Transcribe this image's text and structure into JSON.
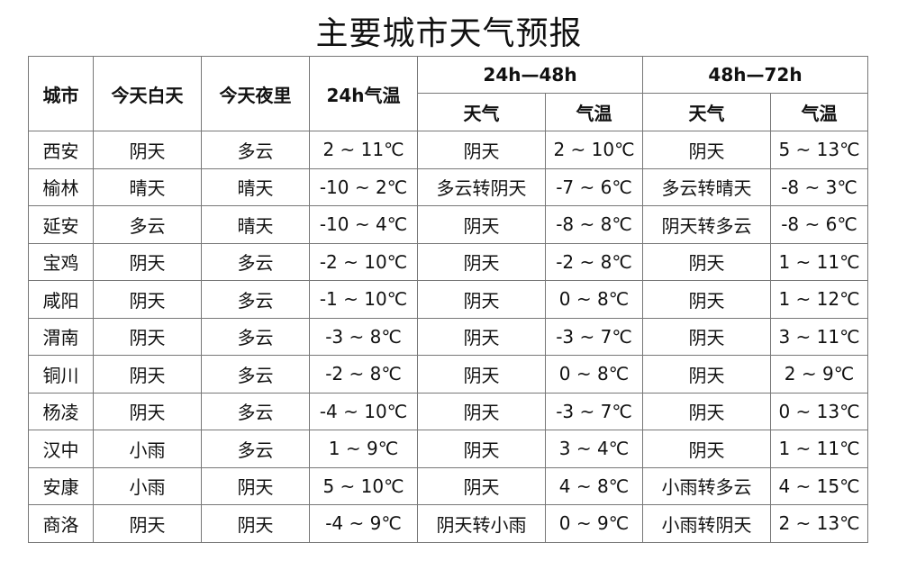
{
  "title": "主要城市天气预报",
  "headers": {
    "city": "城市",
    "today_day": "今天白天",
    "today_night": "今天夜里",
    "temp_24h": "24h气温",
    "group_24_48": "24h—48h",
    "group_48_72": "48h—72h",
    "weather": "天气",
    "temp": "气温"
  },
  "rows": [
    [
      "西安",
      "阴天",
      "多云",
      "2 ~ 11℃",
      "阴天",
      "2 ~ 10℃",
      "阴天",
      "5 ~ 13℃"
    ],
    [
      "榆林",
      "晴天",
      "晴天",
      "-10 ~ 2℃",
      "多云转阴天",
      "-7 ~ 6℃",
      "多云转晴天",
      "-8 ~ 3℃"
    ],
    [
      "延安",
      "多云",
      "晴天",
      "-10 ~ 4℃",
      "阴天",
      "-8 ~ 8℃",
      "阴天转多云",
      "-8 ~ 6℃"
    ],
    [
      "宝鸡",
      "阴天",
      "多云",
      "-2 ~ 10℃",
      "阴天",
      "-2 ~ 8℃",
      "阴天",
      "1 ~ 11℃"
    ],
    [
      "咸阳",
      "阴天",
      "多云",
      "-1 ~ 10℃",
      "阴天",
      "0 ~ 8℃",
      "阴天",
      "1 ~ 12℃"
    ],
    [
      "渭南",
      "阴天",
      "多云",
      "-3 ~ 8℃",
      "阴天",
      "-3 ~ 7℃",
      "阴天",
      "3 ~ 11℃"
    ],
    [
      "铜川",
      "阴天",
      "多云",
      "-2 ~ 8℃",
      "阴天",
      "0 ~ 8℃",
      "阴天",
      "2 ~ 9℃"
    ],
    [
      "杨凌",
      "阴天",
      "多云",
      "-4 ~ 10℃",
      "阴天",
      "-3 ~ 7℃",
      "阴天",
      "0 ~ 13℃"
    ],
    [
      "汉中",
      "小雨",
      "多云",
      "1 ~ 9℃",
      "阴天",
      "3 ~ 4℃",
      "阴天",
      "1 ~ 11℃"
    ],
    [
      "安康",
      "小雨",
      "阴天",
      "5 ~ 10℃",
      "阴天",
      "4 ~ 8℃",
      "小雨转多云",
      "4 ~ 15℃"
    ],
    [
      "商洛",
      "阴天",
      "阴天",
      "-4 ~ 9℃",
      "阴天转小雨",
      "0 ~ 9℃",
      "小雨转阴天",
      "2 ~ 13℃"
    ]
  ]
}
